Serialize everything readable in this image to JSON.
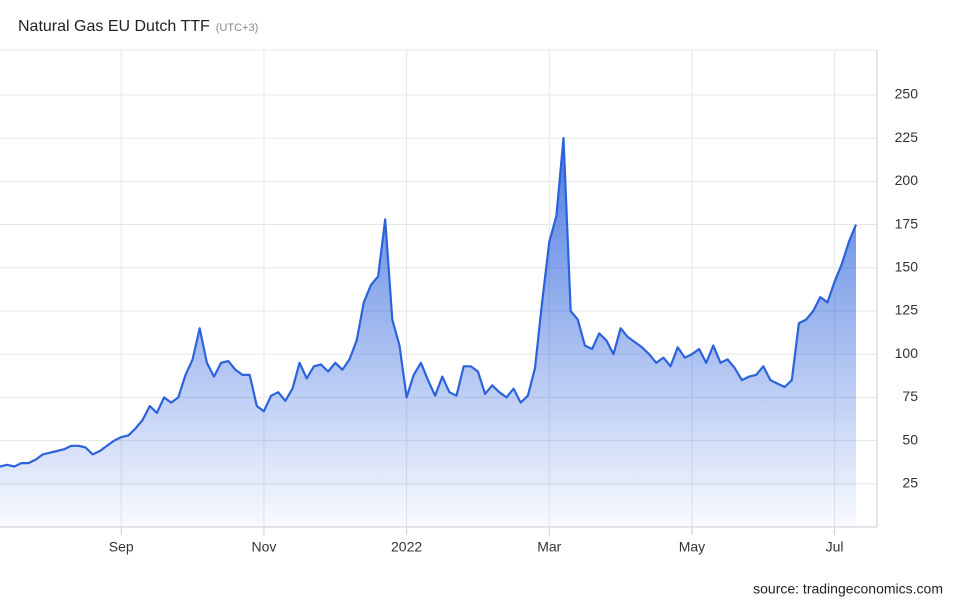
{
  "chart_data": {
    "type": "area",
    "title": "Natural Gas EU Dutch TTF",
    "subtitle": "(UTC+3)",
    "source": "source: tradingeconomics.com",
    "categories": [
      null,
      null,
      null,
      null,
      null,
      null,
      null,
      null,
      null,
      null,
      null,
      null,
      null,
      null,
      null,
      null,
      null,
      "Sep",
      null,
      null,
      null,
      null,
      null,
      null,
      null,
      null,
      null,
      null,
      null,
      null,
      null,
      null,
      null,
      null,
      null,
      null,
      null,
      "Nov",
      null,
      null,
      null,
      null,
      null,
      null,
      null,
      null,
      null,
      null,
      null,
      null,
      null,
      null,
      null,
      null,
      null,
      null,
      null,
      "2022",
      null,
      null,
      null,
      null,
      null,
      null,
      null,
      null,
      null,
      null,
      null,
      null,
      null,
      null,
      null,
      null,
      null,
      null,
      null,
      "Mar",
      null,
      null,
      null,
      null,
      null,
      null,
      null,
      null,
      null,
      null,
      null,
      null,
      null,
      null,
      null,
      null,
      null,
      null,
      null,
      "May",
      null,
      null,
      null,
      null,
      null,
      null,
      null,
      null,
      null,
      null,
      null,
      null,
      null,
      null,
      null,
      null,
      null,
      null,
      null,
      "Jul",
      null,
      null,
      null
    ],
    "values": [
      35,
      36,
      35,
      37,
      37,
      39,
      42,
      43,
      44,
      45,
      47,
      47,
      46,
      42,
      44,
      47,
      50,
      52,
      53,
      57,
      62,
      70,
      66,
      75,
      72,
      75,
      88,
      97,
      115,
      95,
      87,
      95,
      96,
      91,
      88,
      88,
      70,
      67,
      76,
      78,
      73,
      80,
      95,
      86,
      93,
      94,
      90,
      95,
      91,
      97,
      108,
      130,
      140,
      145,
      178,
      120,
      105,
      75,
      88,
      95,
      85,
      76,
      87,
      78,
      76,
      93,
      93,
      90,
      77,
      82,
      78,
      75,
      80,
      72,
      76,
      92,
      130,
      165,
      180,
      225,
      125,
      120,
      105,
      103,
      112,
      108,
      100,
      115,
      110,
      107,
      104,
      100,
      95,
      98,
      93,
      104,
      98,
      100,
      103,
      95,
      105,
      95,
      97,
      92,
      85,
      87,
      88,
      93,
      85,
      83,
      81,
      85,
      118,
      120,
      125,
      133,
      130,
      142,
      152,
      165,
      175
    ],
    "color": "#2c62dc",
    "ylim": [
      0,
      276
    ],
    "yticks": [
      25,
      50,
      75,
      100,
      125,
      150,
      175,
      200,
      225,
      250
    ],
    "grid": true
  }
}
